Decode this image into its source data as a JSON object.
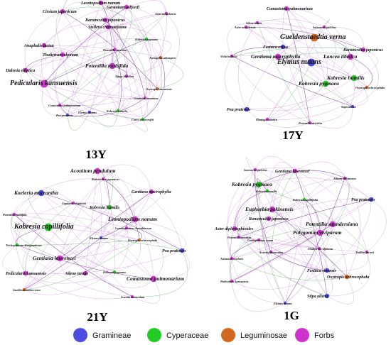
{
  "colors": {
    "gramineae": "#4c4ce0",
    "cyperaceae": "#22cc22",
    "leguminosae": "#d2691e",
    "forbs": "#cc33cc",
    "edge": "#c98ad6",
    "edge_dark": "#7a3a9a",
    "edge_green": "#4caf50"
  },
  "panels": [
    {
      "title": "13Y",
      "nodes": [
        {
          "label": "Leontopodium nanum",
          "group": "forbs",
          "size": "s"
        },
        {
          "label": "Geranium wilfordi",
          "group": "forbs",
          "size": "s"
        },
        {
          "label": "Cirsium japonicum",
          "group": "forbs",
          "size": "s"
        },
        {
          "label": "Ranunculus japonicus",
          "group": "forbs",
          "size": "s"
        },
        {
          "label": "Stellera chamaejasme",
          "group": "forbs",
          "size": "s"
        },
        {
          "label": "Aster tongolensis",
          "group": "forbs",
          "size": "t"
        },
        {
          "label": "Anaphalis lactea",
          "group": "forbs",
          "size": "s"
        },
        {
          "label": "Thalictrum alpinum",
          "group": "forbs",
          "size": "s"
        },
        {
          "label": "Potentilla multifida",
          "group": "forbs",
          "size": "m"
        },
        {
          "label": "Kobresia pygmaea",
          "group": "cyperaceae",
          "size": "t"
        },
        {
          "label": "Potentilla anserina",
          "group": "forbs",
          "size": "t"
        },
        {
          "label": "Astragalus adsurgens",
          "group": "leguminosae",
          "size": "t"
        },
        {
          "label": "Halenia elliptica",
          "group": "forbs",
          "size": "s"
        },
        {
          "label": "Ajuga lupulina",
          "group": "forbs",
          "size": "t"
        },
        {
          "label": "Pedicularis kansuensis",
          "group": "forbs",
          "size": "l"
        },
        {
          "label": "Oxytropis kansuensis",
          "group": "leguminosae",
          "size": "t"
        },
        {
          "label": "Gentiana straminea",
          "group": "forbs",
          "size": "t"
        },
        {
          "label": "Comastoma pulmonarium",
          "group": "forbs",
          "size": "t"
        },
        {
          "label": "Poa pratensis",
          "group": "gramineae",
          "size": "t"
        },
        {
          "label": "Elymus nutans",
          "group": "gramineae",
          "size": "t"
        },
        {
          "label": "Kobresia humilis",
          "group": "cyperaceae",
          "size": "t"
        },
        {
          "label": "Carex moorcroftii",
          "group": "cyperaceae",
          "size": "t"
        }
      ]
    },
    {
      "title": "17Y",
      "nodes": [
        {
          "label": "Comastoma pulmonarium",
          "group": "forbs",
          "size": "s"
        },
        {
          "label": "Silene tenuis",
          "group": "forbs",
          "size": "t"
        },
        {
          "label": "Gueldenstaedtia verna",
          "group": "leguminosae",
          "size": "l"
        },
        {
          "label": "Festuca ovina",
          "group": "gramineae",
          "size": "s"
        },
        {
          "label": "Ranunculus japonicus",
          "group": "forbs",
          "size": "s"
        },
        {
          "label": "Lancea tibetica",
          "group": "forbs",
          "size": "m"
        },
        {
          "label": "Viola bulbosa",
          "group": "forbs",
          "size": "t"
        },
        {
          "label": "Gentiana macrophylla",
          "group": "forbs",
          "size": "m"
        },
        {
          "label": "Elymus nutans",
          "group": "gramineae",
          "size": "l"
        },
        {
          "label": "Kobresia humilis",
          "group": "cyperaceae",
          "size": "m"
        },
        {
          "label": "Kobresia pygmaea",
          "group": "cyperaceae",
          "size": "m"
        },
        {
          "label": "Poa pratensis",
          "group": "gramineae",
          "size": "s"
        },
        {
          "label": "Aster tongolensis",
          "group": "forbs",
          "size": "t"
        },
        {
          "label": "Oxytropis ochrocephala",
          "group": "leguminosae",
          "size": "t"
        },
        {
          "label": "Stipa aliena",
          "group": "gramineae",
          "size": "t"
        },
        {
          "label": "Plantago asiatica",
          "group": "forbs",
          "size": "t"
        },
        {
          "label": "Potentilla anserina",
          "group": "forbs",
          "size": "t"
        },
        {
          "label": "Saussurea pulchra",
          "group": "forbs",
          "size": "t"
        }
      ]
    },
    {
      "title": "21Y",
      "nodes": [
        {
          "label": "Aconitum pendulum",
          "group": "forbs",
          "size": "m"
        },
        {
          "label": "Ranunculus japonicus",
          "group": "forbs",
          "size": "t"
        },
        {
          "label": "Koeleria macrantha",
          "group": "gramineae",
          "size": "m"
        },
        {
          "label": "Gentiana macrophylla",
          "group": "forbs",
          "size": "s"
        },
        {
          "label": "Potentilla multifida",
          "group": "forbs",
          "size": "t"
        },
        {
          "label": "Ligularia virgaurea",
          "group": "forbs",
          "size": "t"
        },
        {
          "label": "Kobresia humilis",
          "group": "cyperaceae",
          "size": "s"
        },
        {
          "label": "Kobresia capillifolia",
          "group": "cyperaceae",
          "size": "l"
        },
        {
          "label": "Leontopodium nanum",
          "group": "forbs",
          "size": "m"
        },
        {
          "label": "Lomatogonium carinthiacum",
          "group": "forbs",
          "size": "t"
        },
        {
          "label": "Trichophorum distigmaticum",
          "group": "cyperaceae",
          "size": "t"
        },
        {
          "label": "Elymus nutans",
          "group": "gramineae",
          "size": "t"
        },
        {
          "label": "Oxytropis ochrocephala",
          "group": "leguminosae",
          "size": "t"
        },
        {
          "label": "Poa pratensis",
          "group": "gramineae",
          "size": "s"
        },
        {
          "label": "Gentiana lawrencei",
          "group": "forbs",
          "size": "m"
        },
        {
          "label": "Pedicularis kansuensis",
          "group": "forbs",
          "size": "s"
        },
        {
          "label": "Silene tenuis",
          "group": "forbs",
          "size": "s"
        },
        {
          "label": "Kobresia pygmaea",
          "group": "cyperaceae",
          "size": "t"
        },
        {
          "label": "Comastoma pulmonarium",
          "group": "forbs",
          "size": "m"
        },
        {
          "label": "Gueldenstaedtia verna",
          "group": "leguminosae",
          "size": "t"
        },
        {
          "label": "Swertia bimaculata",
          "group": "forbs",
          "size": "t"
        }
      ]
    },
    {
      "title": "1G",
      "nodes": [
        {
          "label": "Saussurea pulchra",
          "group": "forbs",
          "size": "t"
        },
        {
          "label": "Gentiana lawrencei",
          "group": "forbs",
          "size": "s"
        },
        {
          "label": "Allium sikkimense",
          "group": "forbs",
          "size": "t"
        },
        {
          "label": "Kobresia pygmaea",
          "group": "cyperaceae",
          "size": "m"
        },
        {
          "label": "Kobresia humilis",
          "group": "cyperaceae",
          "size": "t"
        },
        {
          "label": "Kobresia capillifolia",
          "group": "cyperaceae",
          "size": "t"
        },
        {
          "label": "Poa pratensis",
          "group": "gramineae",
          "size": "s"
        },
        {
          "label": "Euphorbia pekinensis",
          "group": "forbs",
          "size": "m"
        },
        {
          "label": "Potentilla saundersiana",
          "group": "forbs",
          "size": "m"
        },
        {
          "label": "Ranunculus japonicus",
          "group": "forbs",
          "size": "s"
        },
        {
          "label": "Aster diplostephioides",
          "group": "forbs",
          "size": "s"
        },
        {
          "label": "Polygonum viviparum",
          "group": "forbs",
          "size": "m"
        },
        {
          "label": "Potentilla anserina",
          "group": "forbs",
          "size": "t"
        },
        {
          "label": "Lamiophlomis rotata",
          "group": "forbs",
          "size": "t"
        },
        {
          "label": "Swertia bimaculata",
          "group": "forbs",
          "size": "t"
        },
        {
          "label": "Thalictrum alpinum",
          "group": "forbs",
          "size": "t"
        },
        {
          "label": "Anemone rivularis",
          "group": "forbs",
          "size": "t"
        },
        {
          "label": "Festuca sinensis",
          "group": "gramineae",
          "size": "s"
        },
        {
          "label": "Oxytropis ochrocephala",
          "group": "leguminosae",
          "size": "s"
        },
        {
          "label": "Pedicularis kansuensis",
          "group": "forbs",
          "size": "t"
        },
        {
          "label": "Stipa aliena",
          "group": "gramineae",
          "size": "s"
        },
        {
          "label": "Elymus nutans",
          "group": "gramineae",
          "size": "t"
        },
        {
          "label": "Trollius farreri",
          "group": "forbs",
          "size": "t"
        }
      ]
    }
  ],
  "legend": [
    {
      "label": "Gramineae",
      "group": "gramineae"
    },
    {
      "label": "Cyperaceae",
      "group": "cyperaceae"
    },
    {
      "label": "Leguminosae",
      "group": "leguminosae"
    },
    {
      "label": "Forbs",
      "group": "forbs"
    }
  ]
}
